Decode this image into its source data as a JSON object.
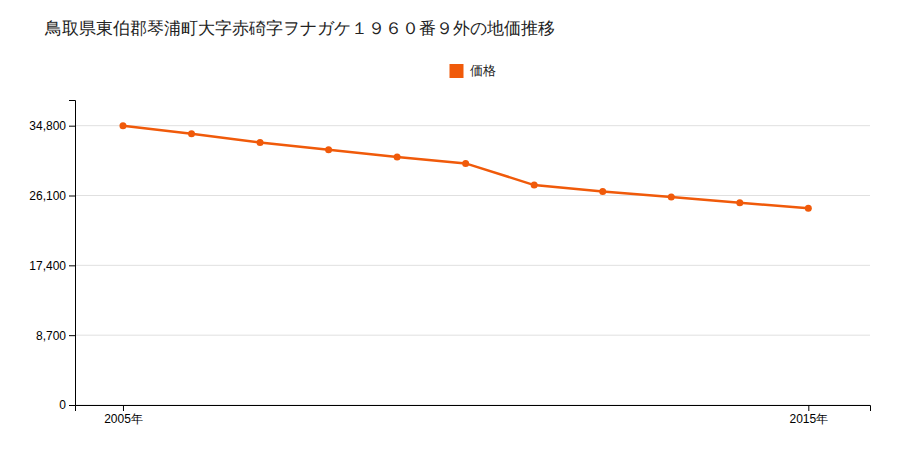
{
  "chart_data": {
    "type": "line",
    "title": "鳥取県東伯郡琴浦町大字赤碕字ヲナガケ１９６０番９外の地価推移",
    "x": [
      2005,
      2006,
      2007,
      2008,
      2009,
      2010,
      2011,
      2012,
      2013,
      2014,
      2015
    ],
    "series": [
      {
        "name": "価格",
        "color": "#f05a0a",
        "marker": "circle",
        "values": [
          34800,
          33800,
          32700,
          31800,
          30900,
          30100,
          27400,
          26600,
          25900,
          25200,
          24500
        ]
      }
    ],
    "xlim": [
      2004.3,
      2015.9
    ],
    "xticks": [
      {
        "value": 2005,
        "label": "2005年"
      },
      {
        "value": 2015,
        "label": "2015年"
      }
    ],
    "ylim": [
      0,
      38000
    ],
    "yticks": [
      0,
      {
        "value": 8700,
        "label": "8,700"
      },
      {
        "value": 17400,
        "label": "17,400"
      },
      {
        "value": 26100,
        "label": "26,100"
      },
      {
        "value": 34800,
        "label": "34,800"
      }
    ],
    "grid": "y",
    "legend": "top"
  }
}
